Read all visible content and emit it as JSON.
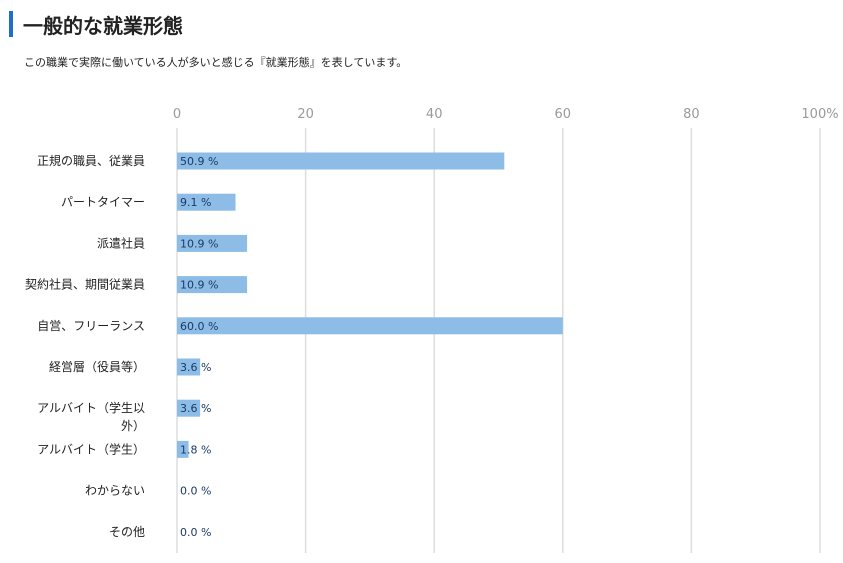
{
  "header": {
    "title": "一般的な就業形態",
    "subtitle": "この職業で実際に働いている人が多いと感じる『就業形態』を表しています。"
  },
  "colors": {
    "accent": "#1f6fc4",
    "bar": "#8dbde6",
    "grid": "#dddddd",
    "tick": "#9a9a9a",
    "value_text": "#1a3a66"
  },
  "chart_data": {
    "type": "bar",
    "orientation": "horizontal",
    "categories": [
      [
        "正規の職員、従業員"
      ],
      [
        "パートタイマー"
      ],
      [
        "派遣社員"
      ],
      [
        "契約社員、期間従業員"
      ],
      [
        "自営、フリーランス"
      ],
      [
        "経営層（役員等）"
      ],
      [
        "アルバイト（学生以",
        "外）"
      ],
      [
        "アルバイト（学生）"
      ],
      [
        "わからない"
      ],
      [
        "その他"
      ]
    ],
    "values": [
      50.9,
      9.1,
      10.9,
      10.9,
      60.0,
      3.6,
      3.6,
      1.8,
      0.0,
      0.0
    ],
    "value_labels": [
      "50.9 %",
      "9.1 %",
      "10.9 %",
      "10.9 %",
      "60.0 %",
      "3.6 %",
      "3.6 %",
      "1.8 %",
      "0.0 %",
      "0.0 %"
    ],
    "xlim": [
      0,
      100
    ],
    "ticks": [
      0,
      20,
      40,
      60,
      80,
      100
    ],
    "tick_labels": [
      "0",
      "20",
      "40",
      "60",
      "80",
      "100%"
    ],
    "grid": true
  }
}
